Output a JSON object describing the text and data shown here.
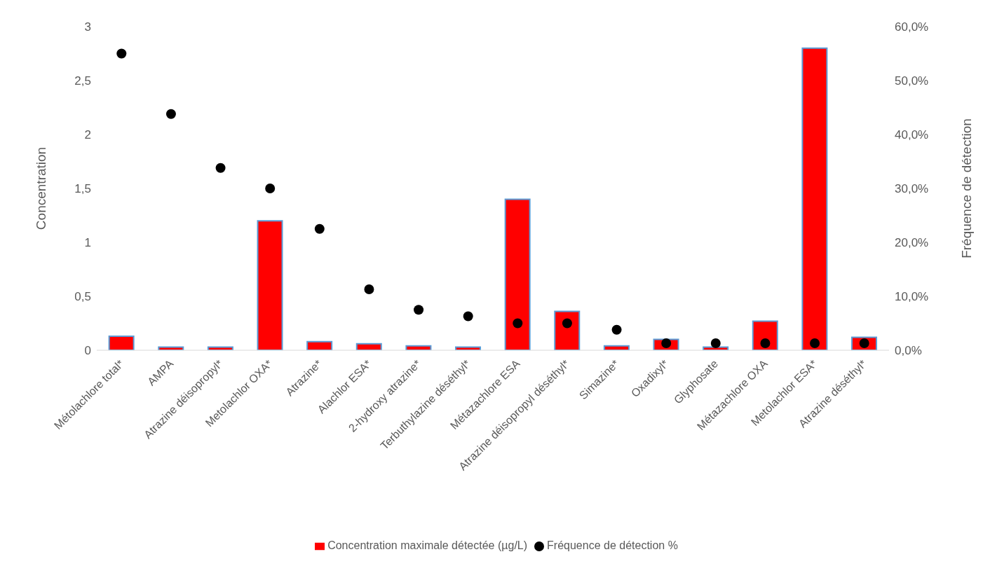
{
  "chart_data": {
    "type": "bar",
    "ylabel": "Concentration",
    "y2label": "Fréquence de détection",
    "categories": [
      "Métolachlore total*",
      "AMPA",
      "Atrazine déisopropyl*",
      "Metolachlor OXA*",
      "Atrazine*",
      "Alachlor ESA*",
      "2-hydroxy atrazine*",
      "Terbuthylazine déséthyl*",
      "Métazachlore ESA",
      "Atrazine déisopropyl déséthyl*",
      "Simazine*",
      "Oxadixyl*",
      "Glyphosate",
      "Métazachlore OXA",
      "Metolachlor ESA*",
      "Atrazine déséthyl*"
    ],
    "series": [
      {
        "name": "Concentration maximale détectée (µg/L)",
        "color": "#ff0000",
        "values": [
          0.13,
          0.03,
          0.03,
          1.2,
          0.08,
          0.06,
          0.04,
          0.03,
          1.4,
          0.36,
          0.04,
          0.1,
          0.03,
          0.27,
          2.8,
          0.12
        ]
      },
      {
        "name": "Fréquence de détection %",
        "type": "scatter",
        "axis": "y2",
        "color": "#000000",
        "values": [
          55,
          43.8,
          33.8,
          30,
          22.5,
          11.3,
          7.5,
          6.3,
          5,
          5,
          3.8,
          1.3,
          1.3,
          1.3,
          1.3,
          1.3
        ]
      }
    ],
    "ylim": [
      0,
      3
    ],
    "yticks": [
      0,
      {
        "value": 0.5,
        "label": "0,5"
      },
      1,
      {
        "value": 1.5,
        "label": "1,5"
      },
      2,
      {
        "value": 2.5,
        "label": "2,5"
      },
      3
    ],
    "y2lim": [
      0,
      60
    ],
    "y2ticks": [
      {
        "value": 0,
        "label": "0,0%"
      },
      {
        "value": 10,
        "label": "10,0%"
      },
      {
        "value": 20,
        "label": "20,0%"
      },
      {
        "value": 30,
        "label": "30,0%"
      },
      {
        "value": 40,
        "label": "40,0%"
      },
      {
        "value": 50,
        "label": "50,0%"
      },
      {
        "value": 60,
        "label": "60,0%"
      }
    ],
    "marker": "circle",
    "grid": false,
    "legend": "bottom"
  }
}
